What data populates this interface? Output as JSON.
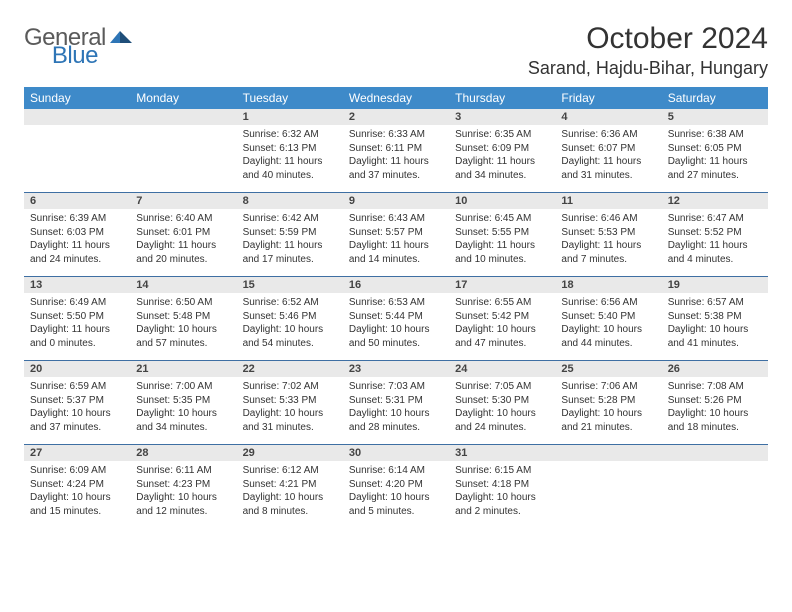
{
  "logo": {
    "text1": "General",
    "text2": "Blue"
  },
  "title": "October 2024",
  "location": "Sarand, Hajdu-Bihar, Hungary",
  "colors": {
    "header_bg": "#3e8ac9",
    "header_text": "#ffffff",
    "daynum_bg": "#e9e9e9",
    "rule": "#3e6fa3",
    "logo_blue": "#2e75b6",
    "text": "#333333"
  },
  "day_names": [
    "Sunday",
    "Monday",
    "Tuesday",
    "Wednesday",
    "Thursday",
    "Friday",
    "Saturday"
  ],
  "weeks": [
    [
      null,
      null,
      {
        "n": "1",
        "sr": "6:32 AM",
        "ss": "6:13 PM",
        "d": "11 hours and 40 minutes."
      },
      {
        "n": "2",
        "sr": "6:33 AM",
        "ss": "6:11 PM",
        "d": "11 hours and 37 minutes."
      },
      {
        "n": "3",
        "sr": "6:35 AM",
        "ss": "6:09 PM",
        "d": "11 hours and 34 minutes."
      },
      {
        "n": "4",
        "sr": "6:36 AM",
        "ss": "6:07 PM",
        "d": "11 hours and 31 minutes."
      },
      {
        "n": "5",
        "sr": "6:38 AM",
        "ss": "6:05 PM",
        "d": "11 hours and 27 minutes."
      }
    ],
    [
      {
        "n": "6",
        "sr": "6:39 AM",
        "ss": "6:03 PM",
        "d": "11 hours and 24 minutes."
      },
      {
        "n": "7",
        "sr": "6:40 AM",
        "ss": "6:01 PM",
        "d": "11 hours and 20 minutes."
      },
      {
        "n": "8",
        "sr": "6:42 AM",
        "ss": "5:59 PM",
        "d": "11 hours and 17 minutes."
      },
      {
        "n": "9",
        "sr": "6:43 AM",
        "ss": "5:57 PM",
        "d": "11 hours and 14 minutes."
      },
      {
        "n": "10",
        "sr": "6:45 AM",
        "ss": "5:55 PM",
        "d": "11 hours and 10 minutes."
      },
      {
        "n": "11",
        "sr": "6:46 AM",
        "ss": "5:53 PM",
        "d": "11 hours and 7 minutes."
      },
      {
        "n": "12",
        "sr": "6:47 AM",
        "ss": "5:52 PM",
        "d": "11 hours and 4 minutes."
      }
    ],
    [
      {
        "n": "13",
        "sr": "6:49 AM",
        "ss": "5:50 PM",
        "d": "11 hours and 0 minutes."
      },
      {
        "n": "14",
        "sr": "6:50 AM",
        "ss": "5:48 PM",
        "d": "10 hours and 57 minutes."
      },
      {
        "n": "15",
        "sr": "6:52 AM",
        "ss": "5:46 PM",
        "d": "10 hours and 54 minutes."
      },
      {
        "n": "16",
        "sr": "6:53 AM",
        "ss": "5:44 PM",
        "d": "10 hours and 50 minutes."
      },
      {
        "n": "17",
        "sr": "6:55 AM",
        "ss": "5:42 PM",
        "d": "10 hours and 47 minutes."
      },
      {
        "n": "18",
        "sr": "6:56 AM",
        "ss": "5:40 PM",
        "d": "10 hours and 44 minutes."
      },
      {
        "n": "19",
        "sr": "6:57 AM",
        "ss": "5:38 PM",
        "d": "10 hours and 41 minutes."
      }
    ],
    [
      {
        "n": "20",
        "sr": "6:59 AM",
        "ss": "5:37 PM",
        "d": "10 hours and 37 minutes."
      },
      {
        "n": "21",
        "sr": "7:00 AM",
        "ss": "5:35 PM",
        "d": "10 hours and 34 minutes."
      },
      {
        "n": "22",
        "sr": "7:02 AM",
        "ss": "5:33 PM",
        "d": "10 hours and 31 minutes."
      },
      {
        "n": "23",
        "sr": "7:03 AM",
        "ss": "5:31 PM",
        "d": "10 hours and 28 minutes."
      },
      {
        "n": "24",
        "sr": "7:05 AM",
        "ss": "5:30 PM",
        "d": "10 hours and 24 minutes."
      },
      {
        "n": "25",
        "sr": "7:06 AM",
        "ss": "5:28 PM",
        "d": "10 hours and 21 minutes."
      },
      {
        "n": "26",
        "sr": "7:08 AM",
        "ss": "5:26 PM",
        "d": "10 hours and 18 minutes."
      }
    ],
    [
      {
        "n": "27",
        "sr": "6:09 AM",
        "ss": "4:24 PM",
        "d": "10 hours and 15 minutes."
      },
      {
        "n": "28",
        "sr": "6:11 AM",
        "ss": "4:23 PM",
        "d": "10 hours and 12 minutes."
      },
      {
        "n": "29",
        "sr": "6:12 AM",
        "ss": "4:21 PM",
        "d": "10 hours and 8 minutes."
      },
      {
        "n": "30",
        "sr": "6:14 AM",
        "ss": "4:20 PM",
        "d": "10 hours and 5 minutes."
      },
      {
        "n": "31",
        "sr": "6:15 AM",
        "ss": "4:18 PM",
        "d": "10 hours and 2 minutes."
      },
      null,
      null
    ]
  ],
  "labels": {
    "sunrise": "Sunrise: ",
    "sunset": "Sunset: ",
    "daylight": "Daylight: "
  }
}
